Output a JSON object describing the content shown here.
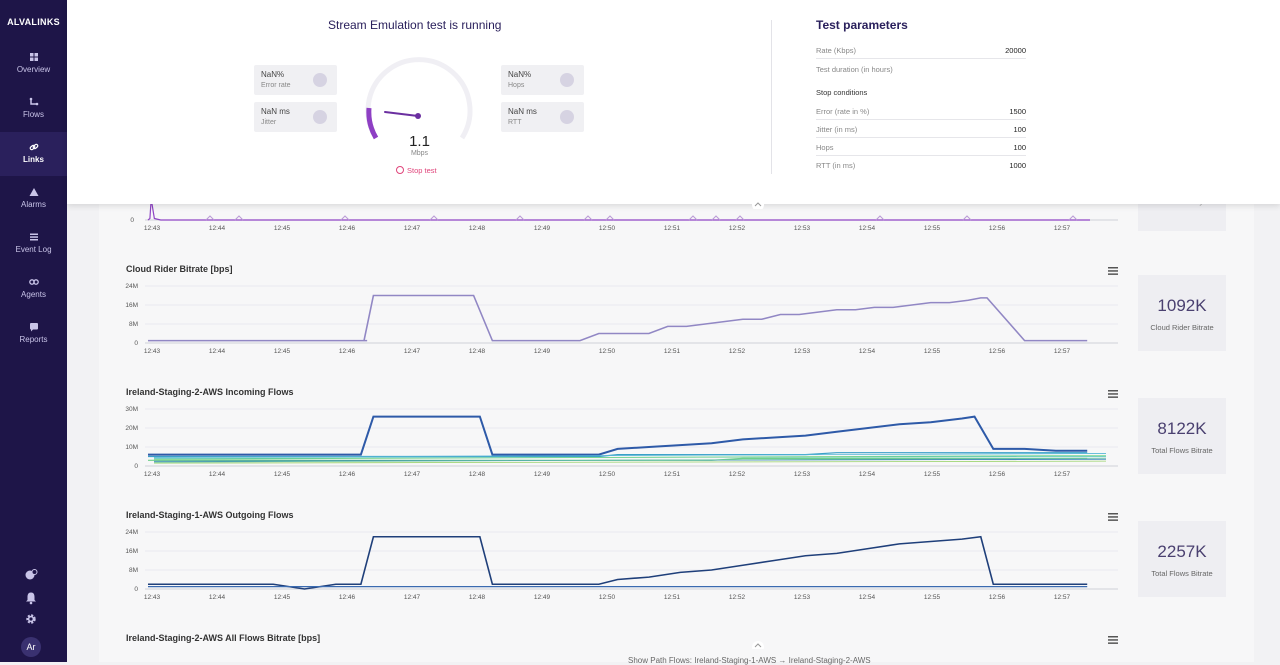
{
  "brand": "ALVALINKS",
  "nav": [
    {
      "label": "Overview",
      "icon": "dashboard-icon"
    },
    {
      "label": "Flows",
      "icon": "flows-icon"
    },
    {
      "label": "Links",
      "icon": "link-icon"
    },
    {
      "label": "Alarms",
      "icon": "alert-icon"
    },
    {
      "label": "Event Log",
      "icon": "list-icon"
    },
    {
      "label": "Agents",
      "icon": "agents-icon"
    },
    {
      "label": "Reports",
      "icon": "reports-icon"
    }
  ],
  "user": {
    "initials": "Ar"
  },
  "test": {
    "title": "Stream Emulation test is running",
    "error_rate": {
      "value": "NaN%",
      "label": "Error rate"
    },
    "jitter": {
      "value": "NaN ms",
      "label": "Jitter"
    },
    "hops": {
      "value": "NaN%",
      "label": "Hops"
    },
    "rtt": {
      "value": "NaN ms",
      "label": "RTT"
    },
    "gauge": {
      "value": "1.1",
      "unit": "Mbps"
    },
    "stop_label": "Stop test"
  },
  "params": {
    "title": "Test parameters",
    "rate_label": "Rate (Kbps)",
    "rate_value": "20000",
    "duration_label": "Test duration (in hours)",
    "stop_title": "Stop conditions",
    "conditions": [
      {
        "label": "Error (rate in %)",
        "value": "1500"
      },
      {
        "label": "Jitter (in ms)",
        "value": "100"
      },
      {
        "label": "Hops",
        "value": "100"
      },
      {
        "label": "RTT (in ms)",
        "value": "1000"
      }
    ]
  },
  "time_ticks": [
    "12:43",
    "12:44",
    "12:45",
    "12:46",
    "12:47",
    "12:48",
    "12:49",
    "12:50",
    "12:51",
    "12:52",
    "12:53",
    "12:54",
    "12:55",
    "12:56",
    "12:57"
  ],
  "charts": {
    "top": {
      "y_ticks": [
        "0"
      ],
      "kpi_label_fragment": "Max Latency"
    },
    "cloud": {
      "title": "Cloud Rider Bitrate [bps]",
      "y_ticks": [
        "24M",
        "16M",
        "8M",
        "0"
      ],
      "kpi_value": "1092K",
      "kpi_label": "Cloud Rider Bitrate"
    },
    "ire2_in": {
      "title": "Ireland-Staging-2-AWS Incoming Flows",
      "y_ticks": [
        "30M",
        "20M",
        "10M",
        "0"
      ],
      "kpi_value": "8122K",
      "kpi_label": "Total Flows Bitrate"
    },
    "ire1_out": {
      "title": "Ireland-Staging-1-AWS Outgoing Flows",
      "y_ticks": [
        "24M",
        "16M",
        "8M",
        "0"
      ],
      "kpi_value": "2257K",
      "kpi_label": "Total Flows Bitrate"
    },
    "ire2_all": {
      "title": "Ireland-Staging-2-AWS All Flows Bitrate [bps]"
    }
  },
  "footer": "Show Path Flows: Ireland-Staging-1-AWS → Ireland-Staging-2-AWS",
  "colors": {
    "sidebar": "#1e1548",
    "accent": "#8e44c4",
    "cloud_line": "#9187c4",
    "incoming_line": "#2e5aa8",
    "outgoing_line": "#1f3f7a",
    "stop": "#e0457b"
  },
  "chart_data": [
    {
      "type": "line",
      "title": "",
      "categories": [
        "12:43",
        "12:44",
        "12:45",
        "12:46",
        "12:47",
        "12:48",
        "12:49",
        "12:50",
        "12:51",
        "12:52",
        "12:53",
        "12:54",
        "12:55",
        "12:56",
        "12:57"
      ],
      "x": [
        12.7,
        12.73,
        12.75,
        12.8,
        12.9,
        13.0,
        13.2,
        13.5,
        13.75,
        14.0,
        14.5,
        15.0,
        15.5,
        16.0,
        16.5,
        17.0,
        17.5,
        18.0,
        18.5,
        19.0,
        19.5,
        20.0,
        20.5,
        21.0,
        21.5,
        22.0,
        22.5,
        23.0,
        23.5,
        24.0,
        24.5,
        25.0,
        25.5,
        26.0,
        26.4,
        26.65,
        26.7,
        26.75,
        26.9,
        27.5
      ],
      "series": [
        {
          "values": [
            0,
            0.5,
            7,
            0.5,
            0,
            0,
            0,
            0,
            0,
            0,
            0,
            0,
            0,
            0,
            0,
            0,
            0,
            0,
            0,
            0,
            0,
            0,
            0,
            0,
            0,
            0,
            0,
            0,
            0,
            0,
            0,
            0,
            0,
            0,
            0,
            0,
            0,
            0,
            0,
            0
          ]
        }
      ]
    },
    {
      "type": "line",
      "title": "Cloud Rider Bitrate [bps]",
      "categories": [
        "12:43",
        "12:44",
        "12:45",
        "12:46",
        "12:47",
        "12:48",
        "12:49",
        "12:50",
        "12:51",
        "12:52",
        "12:53",
        "12:54",
        "12:55",
        "12:56",
        "12:57"
      ],
      "x": [
        0,
        0.5,
        1,
        1.5,
        2,
        2.5,
        3,
        3.5,
        3.45,
        3.6,
        4.3,
        5.2,
        5.5,
        6.0,
        6.9,
        7.2,
        7.5,
        8.0,
        8.3,
        8.6,
        8.9,
        9.2,
        9.5,
        9.8,
        10.1,
        10.4,
        10.7,
        11.0,
        11.3,
        11.6,
        11.9,
        12.2,
        12.5,
        12.8,
        13.1,
        13.3,
        13.4,
        14.0,
        14.5,
        15.0
      ],
      "ylim": [
        0,
        24
      ],
      "series": [
        {
          "name": "Cloud Rider Bitrate",
          "values": [
            1,
            1,
            1,
            1,
            1,
            1,
            1,
            1,
            1,
            20,
            20,
            20,
            1,
            1,
            1,
            4,
            4,
            4,
            7,
            7,
            8,
            9,
            10,
            10,
            12,
            12,
            13,
            14,
            14,
            15,
            15,
            16,
            17,
            17,
            18,
            19,
            19,
            1,
            1,
            1
          ]
        }
      ]
    },
    {
      "type": "line",
      "title": "Ireland-Staging-2-AWS Incoming Flows",
      "categories": [
        "12:43",
        "12:44",
        "12:45",
        "12:46",
        "12:47",
        "12:48",
        "12:49",
        "12:50",
        "12:51",
        "12:52",
        "12:53",
        "12:54",
        "12:55",
        "12:56",
        "12:57"
      ],
      "x": [
        0,
        1,
        2,
        3,
        3.4,
        3.6,
        4.5,
        5.3,
        5.5,
        6.5,
        7.2,
        7.5,
        8.0,
        8.5,
        9.0,
        9.5,
        10.0,
        10.5,
        11.0,
        11.5,
        12.0,
        12.5,
        13.0,
        13.2,
        13.5,
        14.0,
        14.5,
        15.0
      ],
      "ylim": [
        0,
        30
      ],
      "series": [
        {
          "values": [
            6,
            6,
            6,
            6,
            6,
            26,
            26,
            26,
            6,
            6,
            6,
            9,
            10,
            11,
            12,
            14,
            15,
            16,
            18,
            20,
            22,
            23,
            25,
            26,
            9,
            9,
            8,
            8
          ]
        },
        {
          "values": [
            5,
            5,
            5,
            5,
            5,
            5,
            5,
            5,
            5,
            5,
            5,
            6,
            6,
            6,
            6,
            6,
            6,
            6,
            7,
            7,
            7,
            7,
            7,
            7,
            7,
            7,
            7,
            7
          ]
        },
        {
          "values": [
            3,
            3,
            3,
            3,
            3,
            3,
            3,
            3,
            3,
            3,
            3,
            3,
            3,
            3,
            3,
            4,
            4,
            4,
            4,
            4,
            4,
            4,
            4,
            4,
            4,
            4,
            4,
            4
          ]
        }
      ]
    },
    {
      "type": "line",
      "title": "Ireland-Staging-1-AWS Outgoing Flows",
      "categories": [
        "12:43",
        "12:44",
        "12:45",
        "12:46",
        "12:47",
        "12:48",
        "12:49",
        "12:50",
        "12:51",
        "12:52",
        "12:53",
        "12:54",
        "12:55",
        "12:56",
        "12:57"
      ],
      "x": [
        0,
        1,
        2,
        2.5,
        3,
        3.4,
        3.6,
        4.5,
        5.3,
        5.5,
        6.5,
        7.2,
        7.5,
        8.0,
        8.5,
        9.0,
        9.5,
        10.0,
        10.5,
        11.0,
        11.5,
        12.0,
        12.5,
        13.0,
        13.3,
        13.5,
        14.0,
        14.5,
        15.0
      ],
      "ylim": [
        0,
        24
      ],
      "series": [
        {
          "values": [
            2,
            2,
            2,
            0,
            2,
            2,
            22,
            22,
            22,
            2,
            2,
            2,
            4,
            5,
            7,
            8,
            10,
            12,
            14,
            15,
            17,
            19,
            20,
            21,
            22,
            2,
            2,
            2,
            2
          ]
        },
        {
          "values": [
            1,
            1,
            1,
            1,
            1,
            1,
            1,
            1,
            1,
            1,
            1,
            1,
            1,
            1,
            1,
            1,
            1,
            1,
            1,
            1,
            1,
            1,
            1,
            1,
            1,
            1,
            1,
            1,
            1
          ]
        }
      ]
    }
  ]
}
